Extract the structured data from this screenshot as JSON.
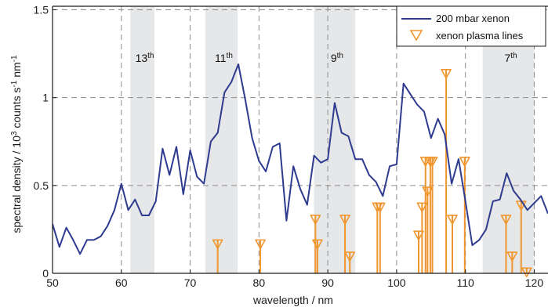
{
  "chart_data": {
    "type": "line",
    "xlabel": "wavelength / nm",
    "ylabel_main": "spectral density / 10",
    "ylabel_exp": "3",
    "ylabel_units": " counts s",
    "ylabel_units_exp": "-1",
    "ylabel_units2": " nm",
    "ylabel_units2_exp": "-1",
    "xlim": [
      50,
      122
    ],
    "ylim": [
      0,
      1.52
    ],
    "xticks": [
      50,
      60,
      70,
      80,
      90,
      100,
      110,
      120
    ],
    "yticks": [
      0,
      0.5,
      1,
      1.5
    ],
    "ytick_labels": [
      "0",
      "0.5",
      "1",
      "1.5"
    ],
    "grid": true,
    "legend_position": "top-right",
    "colors": {
      "spectrum": "#2e3b8f",
      "plasma": "#f0962f",
      "band": "#e6e7e9",
      "grid": "#8c8c8c"
    },
    "harmonic_bands": [
      {
        "label": "13",
        "sup": "th",
        "from": 61.3,
        "to": 64.8
      },
      {
        "label": "11",
        "sup": "th",
        "from": 72.2,
        "to": 76.9
      },
      {
        "label": "9",
        "sup": "th",
        "from": 88.0,
        "to": 94.0
      },
      {
        "label": "7",
        "sup": "th",
        "from": 112.5,
        "to": 120.0
      }
    ],
    "series": [
      {
        "name": "200 mbar xenon",
        "kind": "line",
        "x": [
          50,
          51,
          52,
          53,
          54,
          55,
          56,
          57,
          58,
          59,
          60,
          61,
          62,
          63,
          64,
          65,
          66,
          67,
          68,
          69,
          70,
          71,
          72,
          73,
          74,
          75,
          76,
          77,
          78,
          79,
          80,
          81,
          82,
          83,
          84,
          85,
          86,
          87,
          88,
          89,
          90,
          91,
          92,
          93,
          94,
          95,
          96,
          97,
          98,
          99,
          100,
          101,
          102,
          103,
          104,
          105,
          106,
          107,
          108,
          109,
          110,
          111,
          112,
          113,
          114,
          115,
          116,
          117,
          118,
          119,
          120,
          121,
          122
        ],
        "y": [
          0.28,
          0.15,
          0.26,
          0.19,
          0.11,
          0.19,
          0.19,
          0.21,
          0.27,
          0.36,
          0.51,
          0.36,
          0.42,
          0.33,
          0.33,
          0.41,
          0.71,
          0.56,
          0.72,
          0.45,
          0.7,
          0.55,
          0.51,
          0.75,
          0.8,
          1.03,
          1.09,
          1.19,
          0.99,
          0.77,
          0.64,
          0.58,
          0.72,
          0.74,
          0.3,
          0.61,
          0.48,
          0.39,
          0.67,
          0.63,
          0.65,
          0.97,
          0.8,
          0.78,
          0.65,
          0.65,
          0.56,
          0.52,
          0.44,
          0.61,
          0.62,
          1.08,
          1.02,
          0.96,
          0.92,
          0.77,
          0.88,
          0.79,
          0.51,
          0.65,
          0.41,
          0.16,
          0.19,
          0.25,
          0.41,
          0.42,
          0.57,
          0.47,
          0.42,
          0.36,
          0.4,
          0.44,
          0.34
        ]
      },
      {
        "name": "xenon plasma lines",
        "kind": "stem",
        "x": [
          74.0,
          80.2,
          88.2,
          88.5,
          92.5,
          93.2,
          97.2,
          97.6,
          103.2,
          103.7,
          104.2,
          104.5,
          104.9,
          105.2,
          107.2,
          108.1,
          109.9,
          115.9,
          116.8,
          118.1,
          118.9
        ],
        "y": [
          0.19,
          0.19,
          0.33,
          0.19,
          0.33,
          0.12,
          0.4,
          0.4,
          0.24,
          0.4,
          0.66,
          0.49,
          0.66,
          0.66,
          1.16,
          0.33,
          0.66,
          0.33,
          0.12,
          0.41,
          0.03
        ]
      }
    ]
  }
}
